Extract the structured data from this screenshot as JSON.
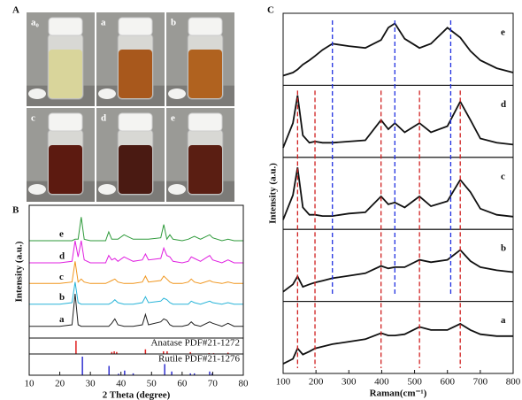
{
  "photo_panel": {
    "panel_label": "A",
    "vials": [
      {
        "label": "a₀",
        "color": "#d9d59b"
      },
      {
        "label": "a",
        "color": "#a8581c"
      },
      {
        "label": "b",
        "color": "#b0621f"
      },
      {
        "label": "c",
        "color": "#5c1a10"
      },
      {
        "label": "d",
        "color": "#4a1a12"
      },
      {
        "label": "e",
        "color": "#5a1e12"
      }
    ]
  },
  "chart_data": [
    {
      "type": "line",
      "panel_label": "B",
      "x_label": "2 Theta (degree)",
      "y_label": "Intensity (a.u.)",
      "xlim": [
        10,
        80
      ],
      "xticks": [
        10,
        20,
        30,
        40,
        50,
        60,
        70,
        80
      ],
      "ylim": [
        0,
        90
      ],
      "x": [
        10,
        20,
        24,
        25,
        26,
        27,
        28,
        30,
        35,
        36,
        37,
        38,
        39,
        41,
        44,
        47,
        48,
        49,
        53,
        54,
        55,
        56,
        57,
        60,
        62,
        63,
        64,
        66,
        69,
        70,
        73,
        75,
        77,
        80
      ],
      "series": [
        {
          "name": "e",
          "color": "#2e9a3a",
          "values": [
            66,
            66,
            66,
            67,
            67,
            82,
            67,
            66,
            66,
            72,
            67,
            67,
            67,
            70,
            67,
            67,
            67,
            67,
            68,
            77,
            67,
            70,
            67,
            66,
            67,
            68,
            69,
            67,
            70,
            68,
            66,
            67,
            66,
            66
          ]
        },
        {
          "name": "d",
          "color": "#e020e0",
          "values": [
            51,
            51,
            52,
            66,
            55,
            66,
            53,
            51,
            51,
            56,
            53,
            54,
            52,
            55,
            52,
            53,
            57,
            53,
            54,
            61,
            56,
            55,
            52,
            51,
            52,
            55,
            54,
            52,
            56,
            53,
            51,
            53,
            51,
            51
          ]
        },
        {
          "name": "c",
          "color": "#f0961e",
          "values": [
            37,
            37,
            38,
            52,
            38,
            40,
            38,
            37,
            37,
            38,
            39,
            40,
            38,
            37,
            37,
            38,
            42,
            38,
            39,
            42,
            40,
            38,
            37,
            37,
            38,
            40,
            38,
            37,
            39,
            38,
            37,
            38,
            37,
            37
          ]
        },
        {
          "name": "b",
          "color": "#28b4d8",
          "values": [
            23,
            23,
            24,
            38,
            24,
            23,
            23,
            23,
            23,
            23,
            24,
            26,
            24,
            23,
            23,
            24,
            28,
            24,
            25,
            27,
            26,
            24,
            23,
            23,
            23,
            25,
            24,
            23,
            25,
            24,
            23,
            24,
            23,
            23
          ]
        },
        {
          "name": "a",
          "color": "#222222",
          "values": [
            8,
            8,
            9,
            30,
            9,
            8,
            8,
            8,
            8,
            8,
            10,
            13,
            9,
            8,
            8,
            9,
            16,
            9,
            11,
            13,
            12,
            9,
            8,
            8,
            9,
            11,
            9,
            8,
            11,
            10,
            8,
            10,
            8,
            8
          ]
        }
      ],
      "references": [
        {
          "name": "Anatase PDF#21-1272",
          "color": "#e02020",
          "ylim": [
            0,
            100
          ],
          "x": [
            25.3,
            37.0,
            37.8,
            38.6,
            48.0,
            53.9,
            55.1,
            62.7,
            68.8,
            70.3,
            75.0
          ],
          "values": [
            100,
            15,
            20,
            15,
            35,
            20,
            20,
            14,
            6,
            6,
            10
          ]
        },
        {
          "name": "Rutile PDF#21-1276",
          "color": "#3030d0",
          "ylim": [
            0,
            100
          ],
          "x": [
            27.4,
            36.1,
            39.2,
            41.2,
            44.0,
            54.3,
            56.6,
            62.7,
            64.0,
            69.0,
            69.8
          ],
          "values": [
            100,
            50,
            8,
            25,
            10,
            60,
            20,
            10,
            10,
            20,
            10
          ]
        }
      ]
    },
    {
      "type": "line",
      "panel_label": "C",
      "x_label": "Raman(cm⁻¹)",
      "y_label": "Intensity (a.u.)",
      "xlim": [
        100,
        800
      ],
      "xticks": [
        100,
        200,
        300,
        400,
        500,
        600,
        700,
        800
      ],
      "ylim": [
        0,
        100
      ],
      "x": [
        100,
        130,
        144,
        160,
        180,
        197,
        220,
        250,
        300,
        350,
        398,
        420,
        440,
        470,
        515,
        550,
        600,
        639,
        670,
        700,
        750,
        800
      ],
      "series": [
        {
          "name": "e",
          "color": "#111111",
          "values": [
            10,
            15,
            20,
            28,
            35,
            42,
            52,
            62,
            58,
            55,
            68,
            88,
            95,
            70,
            55,
            62,
            88,
            72,
            50,
            35,
            22,
            15
          ]
        },
        {
          "name": "d",
          "color": "#111111",
          "values": [
            10,
            50,
            95,
            30,
            18,
            20,
            18,
            18,
            20,
            22,
            55,
            40,
            50,
            35,
            50,
            35,
            45,
            85,
            55,
            25,
            18,
            15
          ]
        },
        {
          "name": "c",
          "color": "#111111",
          "values": [
            10,
            50,
            95,
            30,
            18,
            18,
            16,
            16,
            20,
            22,
            48,
            35,
            38,
            30,
            48,
            32,
            40,
            75,
            55,
            28,
            18,
            15
          ]
        },
        {
          "name": "b",
          "color": "#111111",
          "values": [
            10,
            22,
            35,
            18,
            22,
            25,
            28,
            32,
            36,
            40,
            52,
            48,
            50,
            50,
            62,
            58,
            62,
            78,
            60,
            50,
            45,
            42
          ]
        },
        {
          "name": "a",
          "color": "#111111",
          "values": [
            10,
            18,
            35,
            25,
            30,
            35,
            38,
            42,
            46,
            50,
            60,
            56,
            56,
            58,
            70,
            65,
            65,
            75,
            65,
            58,
            55,
            55
          ]
        }
      ],
      "guides": [
        {
          "color": "#2030e0",
          "x": [
            250,
            440,
            610
          ]
        },
        {
          "color": "#d02020",
          "x": [
            144,
            197,
            398,
            515,
            639
          ]
        }
      ]
    }
  ]
}
